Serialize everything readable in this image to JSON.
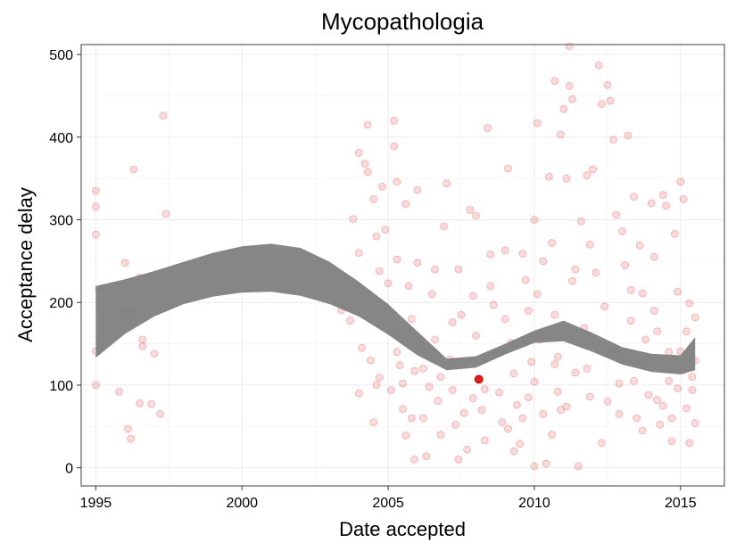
{
  "chart_data": {
    "type": "scatter",
    "title": "Mycopathologia",
    "xlabel": "Date accepted",
    "ylabel": "Acceptance delay",
    "xlim": [
      1994.5,
      2016.5
    ],
    "ylim": [
      -22,
      512
    ],
    "x_ticks": [
      1995,
      2000,
      2005,
      2010,
      2015
    ],
    "y_ticks": [
      0,
      100,
      200,
      300,
      400,
      500
    ],
    "grid": true,
    "colors": {
      "points": "#e31a1c",
      "highlight": "#e31a1c",
      "band": "#7f7f7f",
      "grid": "#ebebeb",
      "panel_border": "#7f7f7f"
    },
    "highlight_point": {
      "x": 2008.1,
      "y": 107
    },
    "smooth_band": {
      "x": [
        1995.0,
        1996.0,
        1997.0,
        1998.0,
        1999.0,
        2000.0,
        2001.0,
        2002.0,
        2003.0,
        2004.0,
        2005.0,
        2006.0,
        2007.0,
        2008.0,
        2009.0,
        2010.0,
        2011.0,
        2012.0,
        2013.0,
        2014.0,
        2015.0,
        2015.5
      ],
      "upper": [
        220,
        228,
        238,
        249,
        260,
        268,
        271,
        266,
        249,
        225,
        198,
        165,
        132,
        135,
        150,
        166,
        178,
        163,
        146,
        138,
        136,
        158
      ],
      "lower": [
        133,
        162,
        183,
        198,
        207,
        212,
        213,
        208,
        198,
        183,
        161,
        136,
        118,
        121,
        137,
        151,
        153,
        140,
        125,
        116,
        113,
        118
      ]
    },
    "points": [
      [
        1995.0,
        335
      ],
      [
        1995.0,
        316
      ],
      [
        1995.0,
        282
      ],
      [
        1995.0,
        141
      ],
      [
        1995.0,
        100
      ],
      [
        1995.1,
        216
      ],
      [
        1995.8,
        92
      ],
      [
        1996.0,
        248
      ],
      [
        1996.0,
        190
      ],
      [
        1996.1,
        188
      ],
      [
        1996.2,
        187
      ],
      [
        1996.1,
        47
      ],
      [
        1996.2,
        35
      ],
      [
        1996.3,
        361
      ],
      [
        1996.5,
        230
      ],
      [
        1996.6,
        155
      ],
      [
        1996.6,
        147
      ],
      [
        1996.5,
        78
      ],
      [
        1996.9,
        77
      ],
      [
        1997.0,
        138
      ],
      [
        1997.2,
        65
      ],
      [
        1997.3,
        426
      ],
      [
        1997.4,
        307
      ],
      [
        2003.4,
        191
      ],
      [
        2003.7,
        178
      ],
      [
        2003.8,
        301
      ],
      [
        2004.0,
        381
      ],
      [
        2004.2,
        368
      ],
      [
        2004.0,
        260
      ],
      [
        2004.1,
        145
      ],
      [
        2004.0,
        90
      ],
      [
        2004.3,
        415
      ],
      [
        2004.3,
        358
      ],
      [
        2004.5,
        325
      ],
      [
        2004.6,
        280
      ],
      [
        2004.7,
        238
      ],
      [
        2004.4,
        130
      ],
      [
        2004.5,
        55
      ],
      [
        2004.7,
        109
      ],
      [
        2004.8,
        340
      ],
      [
        2004.9,
        288
      ],
      [
        2005.0,
        223
      ],
      [
        2005.1,
        165
      ],
      [
        2005.1,
        94
      ],
      [
        2005.2,
        420
      ],
      [
        2005.2,
        389
      ],
      [
        2005.3,
        346
      ],
      [
        2005.3,
        252
      ],
      [
        2005.4,
        124
      ],
      [
        2005.5,
        102
      ],
      [
        2005.5,
        71
      ],
      [
        2005.6,
        319
      ],
      [
        2005.7,
        220
      ],
      [
        2005.8,
        180
      ],
      [
        2005.9,
        117
      ],
      [
        2006.0,
        336
      ],
      [
        2006.0,
        248
      ],
      [
        2006.1,
        150
      ],
      [
        2006.2,
        60
      ],
      [
        2006.3,
        14
      ],
      [
        2006.5,
        210
      ],
      [
        2006.6,
        155
      ],
      [
        2006.7,
        81
      ],
      [
        2006.8,
        40
      ],
      [
        2006.9,
        292
      ],
      [
        2007.0,
        344
      ],
      [
        2007.1,
        131
      ],
      [
        2007.2,
        94
      ],
      [
        2007.3,
        52
      ],
      [
        2007.4,
        240
      ],
      [
        2007.5,
        185
      ],
      [
        2007.6,
        126
      ],
      [
        2007.7,
        22
      ],
      [
        2007.8,
        312
      ],
      [
        2007.9,
        208
      ],
      [
        2008.0,
        305
      ],
      [
        2008.0,
        160
      ],
      [
        2008.2,
        70
      ],
      [
        2008.3,
        33
      ],
      [
        2008.4,
        411
      ],
      [
        2008.5,
        258
      ],
      [
        2008.6,
        197
      ],
      [
        2008.8,
        91
      ],
      [
        2008.9,
        55
      ],
      [
        2009.0,
        263
      ],
      [
        2009.1,
        362
      ],
      [
        2009.2,
        151
      ],
      [
        2009.3,
        114
      ],
      [
        2009.4,
        76
      ],
      [
        2009.5,
        29
      ],
      [
        2009.6,
        259
      ],
      [
        2009.7,
        227
      ],
      [
        2009.8,
        190
      ],
      [
        2009.9,
        128
      ],
      [
        2010.0,
        300
      ],
      [
        2010.0,
        104
      ],
      [
        2010.0,
        2
      ],
      [
        2010.1,
        417
      ],
      [
        2010.1,
        210
      ],
      [
        2010.2,
        155
      ],
      [
        2010.3,
        65
      ],
      [
        2010.4,
        5
      ],
      [
        2010.5,
        352
      ],
      [
        2010.6,
        272
      ],
      [
        2010.7,
        468
      ],
      [
        2010.7,
        185
      ],
      [
        2010.8,
        134
      ],
      [
        2010.8,
        92
      ],
      [
        2010.9,
        403
      ],
      [
        2011.0,
        434
      ],
      [
        2011.1,
        350
      ],
      [
        2011.2,
        510
      ],
      [
        2011.2,
        462
      ],
      [
        2011.3,
        446
      ],
      [
        2011.3,
        226
      ],
      [
        2011.4,
        115
      ],
      [
        2011.5,
        2
      ],
      [
        2011.6,
        298
      ],
      [
        2011.7,
        169
      ],
      [
        2011.8,
        354
      ],
      [
        2011.9,
        86
      ],
      [
        2012.0,
        361
      ],
      [
        2012.1,
        236
      ],
      [
        2012.2,
        487
      ],
      [
        2012.3,
        440
      ],
      [
        2012.4,
        195
      ],
      [
        2012.5,
        463
      ],
      [
        2012.6,
        444
      ],
      [
        2012.7,
        397
      ],
      [
        2012.7,
        143
      ],
      [
        2012.8,
        306
      ],
      [
        2012.9,
        102
      ],
      [
        2013.0,
        286
      ],
      [
        2013.1,
        245
      ],
      [
        2013.2,
        402
      ],
      [
        2013.3,
        178
      ],
      [
        2013.4,
        328
      ],
      [
        2013.5,
        60
      ],
      [
        2013.6,
        269
      ],
      [
        2013.7,
        211
      ],
      [
        2013.8,
        123
      ],
      [
        2013.9,
        88
      ],
      [
        2014.0,
        320
      ],
      [
        2014.1,
        255
      ],
      [
        2014.2,
        165
      ],
      [
        2014.3,
        52
      ],
      [
        2014.4,
        330
      ],
      [
        2014.5,
        317
      ],
      [
        2014.6,
        105
      ],
      [
        2014.7,
        32
      ],
      [
        2014.8,
        283
      ],
      [
        2014.9,
        213
      ],
      [
        2015.0,
        346
      ],
      [
        2015.0,
        141
      ],
      [
        2015.1,
        325
      ],
      [
        2015.2,
        72
      ],
      [
        2015.3,
        199
      ],
      [
        2015.4,
        94
      ],
      [
        2015.5,
        182
      ],
      [
        2015.5,
        54
      ],
      [
        2005.6,
        39
      ],
      [
        2006.4,
        98
      ],
      [
        2006.2,
        120
      ],
      [
        2007.2,
        176
      ],
      [
        2007.6,
        66
      ],
      [
        2008.7,
        139
      ],
      [
        2009.1,
        47
      ],
      [
        2009.8,
        85
      ],
      [
        2010.6,
        40
      ],
      [
        2011.1,
        74
      ],
      [
        2011.8,
        120
      ],
      [
        2012.3,
        30
      ],
      [
        2012.9,
        65
      ],
      [
        2013.4,
        105
      ],
      [
        2014.2,
        82
      ],
      [
        2014.6,
        140
      ],
      [
        2015.1,
        118
      ],
      [
        2015.3,
        30
      ],
      [
        2005.3,
        140
      ],
      [
        2006.8,
        110
      ],
      [
        2008.3,
        95
      ],
      [
        2009.6,
        60
      ],
      [
        2010.9,
        70
      ],
      [
        2012.5,
        80
      ],
      [
        2013.7,
        45
      ],
      [
        2014.9,
        96
      ],
      [
        2004.9,
        195
      ],
      [
        2005.8,
        60
      ],
      [
        2007.9,
        84
      ],
      [
        2009.3,
        20
      ],
      [
        2011.4,
        240
      ],
      [
        2013.0,
        130
      ],
      [
        2014.4,
        75
      ],
      [
        2015.4,
        110
      ],
      [
        2006.6,
        240
      ],
      [
        2008.5,
        220
      ],
      [
        2010.3,
        250
      ],
      [
        2011.9,
        270
      ],
      [
        2013.3,
        215
      ],
      [
        2014.1,
        190
      ],
      [
        2015.2,
        165
      ],
      [
        2004.6,
        100
      ],
      [
        2005.9,
        10
      ],
      [
        2007.4,
        10
      ],
      [
        2009.0,
        180
      ],
      [
        2010.7,
        125
      ],
      [
        2012.1,
        150
      ],
      [
        2013.8,
        155
      ],
      [
        2014.7,
        60
      ],
      [
        2015.5,
        130
      ]
    ]
  }
}
